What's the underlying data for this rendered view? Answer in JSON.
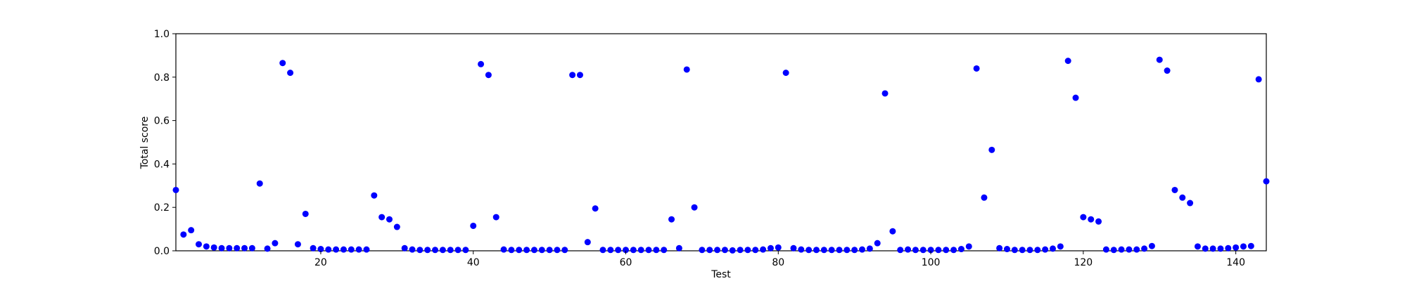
{
  "chart_data": {
    "type": "scatter",
    "xlabel": "Test",
    "ylabel": "Total score",
    "xlim": [
      1,
      144
    ],
    "ylim": [
      0.0,
      1.0
    ],
    "x_ticks": [
      20,
      40,
      60,
      80,
      100,
      120,
      140
    ],
    "x_tick_labels": [
      "20",
      "40",
      "60",
      "80",
      "100",
      "120",
      "140"
    ],
    "y_ticks": [
      0.0,
      0.2,
      0.4,
      0.6,
      0.8,
      1.0
    ],
    "y_tick_labels": [
      "0.0",
      "0.2",
      "0.4",
      "0.6",
      "0.8",
      "1.0"
    ],
    "grid": false,
    "marker_color": "#0000ff",
    "series": [
      {
        "x": [
          1,
          2,
          3,
          4,
          5,
          6,
          7,
          8,
          9,
          10,
          11,
          12,
          13,
          14,
          15,
          16,
          17,
          18,
          19,
          20,
          21,
          22,
          23,
          24,
          25,
          26,
          27,
          28,
          29,
          30,
          31,
          32,
          33,
          34,
          35,
          36,
          37,
          38,
          39,
          40,
          41,
          42,
          43,
          44,
          45,
          46,
          47,
          48,
          49,
          50,
          51,
          52,
          53,
          54,
          55,
          56,
          57,
          58,
          59,
          60,
          61,
          62,
          63,
          64,
          65,
          66,
          67,
          68,
          69,
          70,
          71,
          72,
          73,
          74,
          75,
          76,
          77,
          78,
          79,
          80,
          81,
          82,
          83,
          84,
          85,
          86,
          87,
          88,
          89,
          90,
          91,
          92,
          93,
          94,
          95,
          96,
          97,
          98,
          99,
          100,
          101,
          102,
          103,
          104,
          105,
          106,
          107,
          108,
          109,
          110,
          111,
          112,
          113,
          114,
          115,
          116,
          117,
          118,
          119,
          120,
          121,
          122,
          123,
          124,
          125,
          126,
          127,
          128,
          129,
          130,
          131,
          132,
          133,
          134,
          135,
          136,
          137,
          138,
          139,
          140,
          141,
          142,
          143,
          144
        ],
        "y": [
          0.28,
          0.075,
          0.095,
          0.03,
          0.02,
          0.015,
          0.012,
          0.012,
          0.012,
          0.012,
          0.012,
          0.31,
          0.01,
          0.035,
          0.865,
          0.82,
          0.03,
          0.17,
          0.012,
          0.008,
          0.006,
          0.006,
          0.006,
          0.006,
          0.006,
          0.006,
          0.255,
          0.155,
          0.145,
          0.11,
          0.012,
          0.006,
          0.004,
          0.004,
          0.004,
          0.004,
          0.004,
          0.004,
          0.004,
          0.115,
          0.86,
          0.81,
          0.155,
          0.006,
          0.004,
          0.004,
          0.004,
          0.004,
          0.004,
          0.004,
          0.004,
          0.004,
          0.81,
          0.81,
          0.04,
          0.195,
          0.004,
          0.004,
          0.004,
          0.004,
          0.004,
          0.004,
          0.004,
          0.004,
          0.004,
          0.145,
          0.012,
          0.835,
          0.2,
          0.004,
          0.004,
          0.004,
          0.004,
          0.002,
          0.004,
          0.004,
          0.004,
          0.006,
          0.012,
          0.015,
          0.82,
          0.012,
          0.006,
          0.004,
          0.004,
          0.004,
          0.004,
          0.004,
          0.004,
          0.004,
          0.006,
          0.01,
          0.035,
          0.725,
          0.09,
          0.004,
          0.006,
          0.004,
          0.004,
          0.004,
          0.004,
          0.004,
          0.004,
          0.008,
          0.02,
          0.84,
          0.245,
          0.465,
          0.012,
          0.008,
          0.004,
          0.004,
          0.004,
          0.004,
          0.006,
          0.01,
          0.02,
          0.875,
          0.705,
          0.155,
          0.145,
          0.135,
          0.006,
          0.004,
          0.006,
          0.006,
          0.006,
          0.01,
          0.022,
          0.88,
          0.83,
          0.28,
          0.245,
          0.22,
          0.02,
          0.01,
          0.01,
          0.01,
          0.012,
          0.015,
          0.02,
          0.022,
          0.79,
          0.32
        ]
      }
    ]
  }
}
